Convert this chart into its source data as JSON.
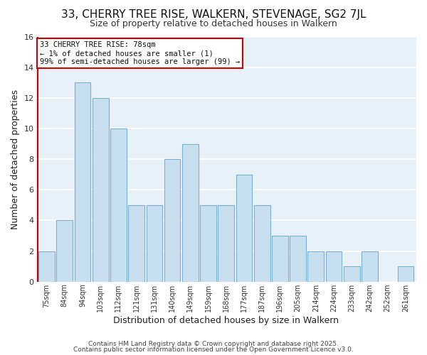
{
  "title": "33, CHERRY TREE RISE, WALKERN, STEVENAGE, SG2 7JL",
  "subtitle": "Size of property relative to detached houses in Walkern",
  "xlabel": "Distribution of detached houses by size in Walkern",
  "ylabel": "Number of detached properties",
  "bar_labels": [
    "75sqm",
    "84sqm",
    "94sqm",
    "103sqm",
    "112sqm",
    "121sqm",
    "131sqm",
    "140sqm",
    "149sqm",
    "159sqm",
    "168sqm",
    "177sqm",
    "187sqm",
    "196sqm",
    "205sqm",
    "214sqm",
    "224sqm",
    "233sqm",
    "242sqm",
    "252sqm",
    "261sqm"
  ],
  "bar_values": [
    2,
    4,
    13,
    12,
    10,
    5,
    5,
    8,
    9,
    5,
    5,
    7,
    5,
    3,
    3,
    2,
    2,
    1,
    2,
    0,
    1
  ],
  "bar_color": "#c8dff0",
  "bar_edge_color": "#7ab0d4",
  "highlight_line_color": "#cc0000",
  "ylim": [
    0,
    16
  ],
  "yticks": [
    0,
    2,
    4,
    6,
    8,
    10,
    12,
    14,
    16
  ],
  "annotation_title": "33 CHERRY TREE RISE: 78sqm",
  "annotation_line1": "← 1% of detached houses are smaller (1)",
  "annotation_line2": "99% of semi-detached houses are larger (99) →",
  "annotation_box_color": "#ffffff",
  "annotation_box_edge": "#cc0000",
  "footer1": "Contains HM Land Registry data © Crown copyright and database right 2025.",
  "footer2": "Contains public sector information licensed under the Open Government Licence v3.0.",
  "plot_bg_color": "#e8f0f8",
  "fig_bg_color": "#ffffff",
  "grid_color": "#ffffff",
  "title_fontsize": 11,
  "subtitle_fontsize": 9
}
